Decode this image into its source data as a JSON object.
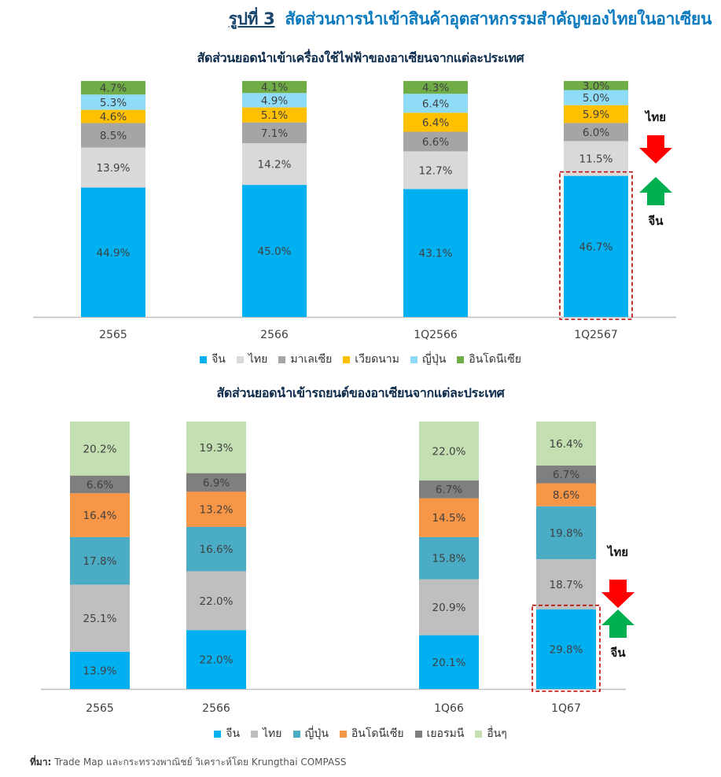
{
  "figure": {
    "number": "รูปที่ 3",
    "title": "สัดส่วนการนำเข้าสินค้าอุตสาหกรรมสำคัญของไทยในอาเซียน"
  },
  "source": {
    "label": "ที่มา:",
    "text": "Trade Map และกระทรวงพาณิชย์ วิเคราะห์โดย Krungthai COMPASS"
  },
  "chart_data": [
    {
      "type": "bar",
      "stacked": true,
      "title": "สัดส่วนยอดนำเข้าเครื่องใช้ไฟฟ้าของอาเซียนจากแต่ละประเทศ",
      "categories": [
        "2565",
        "2566",
        "1Q2566",
        "1Q2567"
      ],
      "series": [
        {
          "name": "จีน",
          "color": "#00b0f0",
          "values": [
            44.9,
            45.0,
            43.1,
            46.7
          ]
        },
        {
          "name": "ไทย",
          "color": "#d9d9d9",
          "values": [
            13.9,
            14.2,
            12.7,
            11.5
          ]
        },
        {
          "name": "มาเลเซีย",
          "color": "#a5a5a5",
          "values": [
            8.5,
            7.1,
            6.6,
            6.0
          ]
        },
        {
          "name": "เวียดนาม",
          "color": "#ffc000",
          "values": [
            4.6,
            5.1,
            6.4,
            5.9
          ]
        },
        {
          "name": "ญี่ปุ่น",
          "color": "#8fdcf8",
          "values": [
            5.3,
            4.9,
            6.4,
            5.0
          ]
        },
        {
          "name": "อินโดนีเซีย",
          "color": "#70ad47",
          "values": [
            4.7,
            4.1,
            4.3,
            3.0
          ]
        }
      ],
      "legend_position": "bottom",
      "highlight": {
        "category": "1Q2567",
        "series": "จีน"
      },
      "annotations": {
        "down_label": "ไทย",
        "up_label": "จีน"
      }
    },
    {
      "type": "bar",
      "stacked": true,
      "title": "สัดส่วนยอดนำเข้ารถยนต์ของอาเซียนจากแต่ละประเทศ",
      "categories": [
        "2565",
        "2566",
        "1Q66",
        "1Q67"
      ],
      "series": [
        {
          "name": "จีน",
          "color": "#00b0f0",
          "values": [
            13.9,
            22.0,
            20.1,
            29.8
          ]
        },
        {
          "name": "ไทย",
          "color": "#bfbfbf",
          "values": [
            25.1,
            22.0,
            20.9,
            18.7
          ]
        },
        {
          "name": "ญี่ปุ่น",
          "color": "#4bacc6",
          "values": [
            17.8,
            16.6,
            15.8,
            19.8
          ]
        },
        {
          "name": "อินโดนีเซีย",
          "color": "#f79646",
          "values": [
            16.4,
            13.2,
            14.5,
            8.6
          ]
        },
        {
          "name": "เยอรมนี",
          "color": "#7f7f7f",
          "values": [
            6.6,
            6.9,
            6.7,
            6.7
          ]
        },
        {
          "name": "อื่นๆ",
          "color": "#c4e0b2",
          "values": [
            20.2,
            19.3,
            22.0,
            16.4
          ]
        }
      ],
      "legend_position": "bottom",
      "highlight": {
        "category": "1Q67",
        "series": "จีน"
      },
      "annotations": {
        "down_label": "ไทย",
        "up_label": "จีน"
      }
    }
  ]
}
